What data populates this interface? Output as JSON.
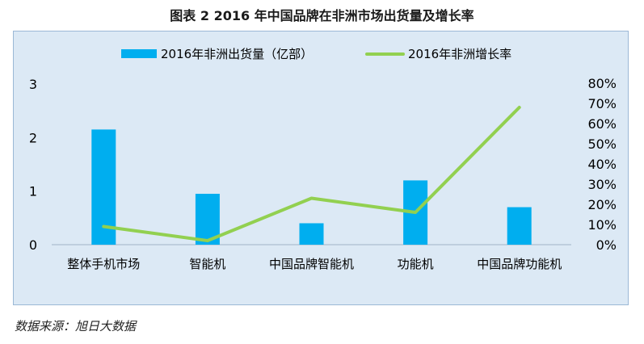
{
  "figure": {
    "title": "图表 2    2016 年中国品牌在非洲市场出货量及增长率",
    "source": "数据来源：旭日大数据"
  },
  "colors": {
    "bar": "#00aeef",
    "line": "#92d050",
    "frame_bg": "#dce9f5",
    "frame_border": "#9bb8d6",
    "axis": "#9fb3c8",
    "text": "#000000"
  },
  "chart_data": {
    "type": "bar",
    "categories": [
      "整体手机市场",
      "智能机",
      "中国品牌智能机",
      "功能机",
      "中国品牌功能机"
    ],
    "series": [
      {
        "name": "2016年非洲出货量（亿部）",
        "type": "bar",
        "axis": "left",
        "values": [
          2.15,
          0.95,
          0.4,
          1.2,
          0.7
        ]
      },
      {
        "name": "2016年非洲增长率",
        "type": "line",
        "axis": "right",
        "values": [
          0.09,
          0.02,
          0.23,
          0.16,
          0.68
        ]
      }
    ],
    "y_left": {
      "min": 0,
      "max": 3,
      "ticks": [
        "0",
        "1",
        "2",
        "3"
      ]
    },
    "y_right": {
      "min": 0,
      "max": 0.8,
      "ticks": [
        "0%",
        "10%",
        "20%",
        "30%",
        "40%",
        "50%",
        "60%",
        "70%",
        "80%"
      ]
    },
    "legend_position": "top",
    "grid": false
  }
}
